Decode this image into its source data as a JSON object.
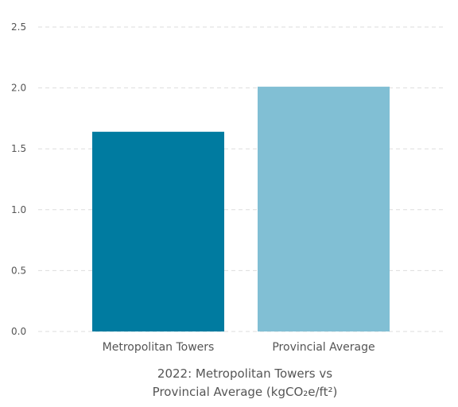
{
  "chart_data": {
    "type": "bar",
    "title_lines": [
      "2022: Metropolitan Towers vs",
      "Provincial Average (kgCO₂e/ft²)"
    ],
    "xlabel": "",
    "ylabel": "",
    "categories": [
      "Metropolitan Towers",
      "Provincial Average"
    ],
    "values": [
      1.64,
      2.01
    ],
    "colors": [
      "#007ba0",
      "#81bfd4"
    ],
    "ylim": [
      0,
      2.5
    ],
    "yticks": [
      "0.0",
      "0.5",
      "1.0",
      "1.5",
      "2.0",
      "2.5"
    ],
    "grid": true,
    "legend": false
  }
}
